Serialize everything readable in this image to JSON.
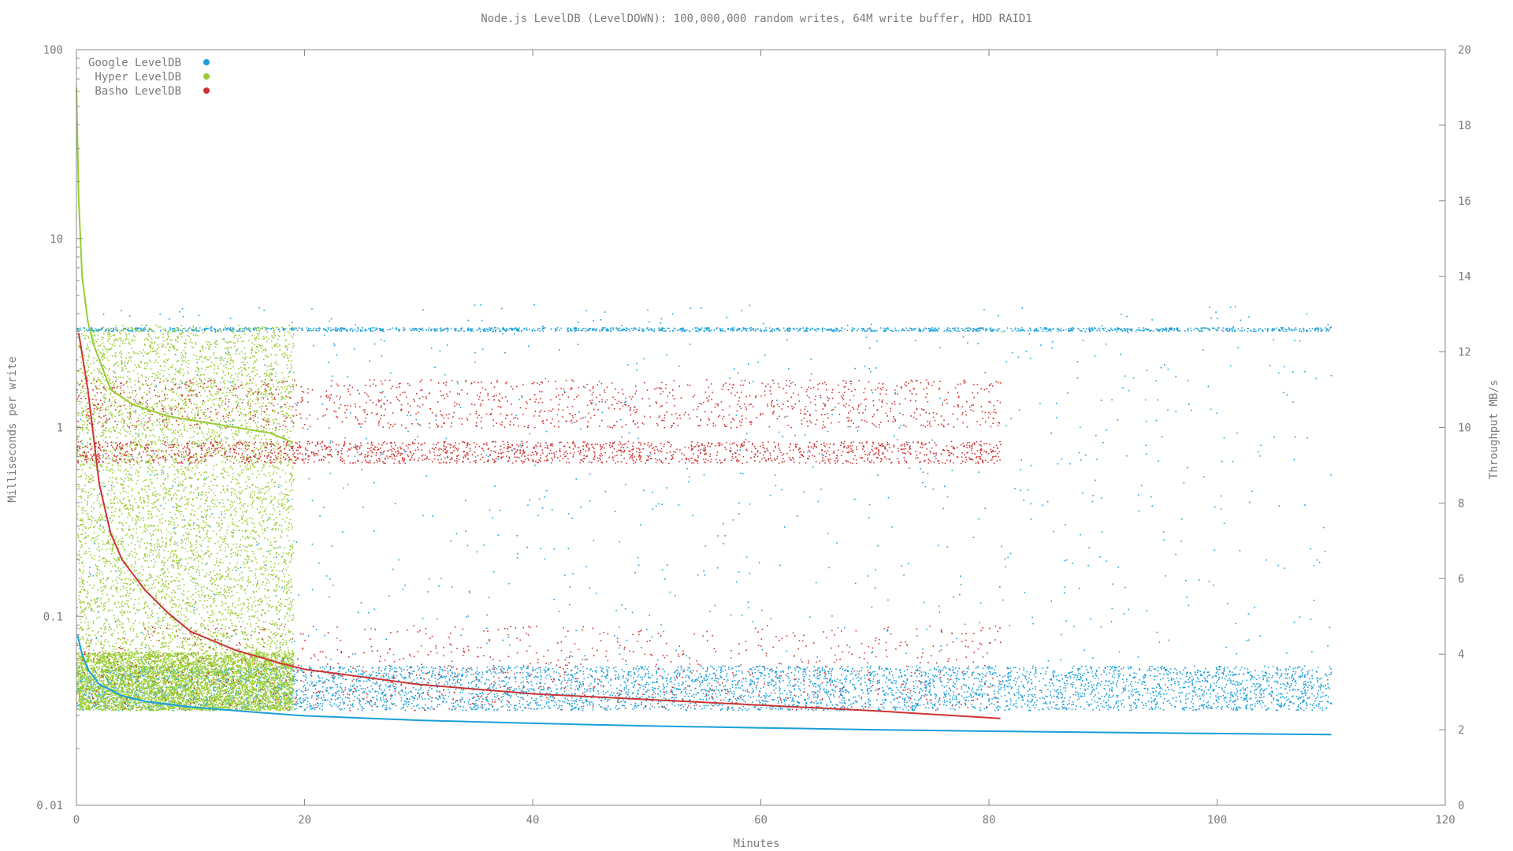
{
  "chart_data": {
    "type": "scatter",
    "title": "Node.js LevelDB (LevelDOWN): 100,000,000 random writes, 64M write buffer, HDD RAID1",
    "xlabel": "Minutes",
    "ylabel": "Milliseconds per write",
    "y2label": "Throughput MB/s",
    "xlim": [
      0,
      120
    ],
    "ylim": [
      0.01,
      100
    ],
    "y_scale": "log",
    "y2lim": [
      0,
      20
    ],
    "grid": false,
    "legend_position": "top-left",
    "x_ticks": [
      "0",
      "20",
      "40",
      "60",
      "80",
      "100",
      "120"
    ],
    "y_ticks": [
      "0.01",
      "0.1",
      "1",
      "10",
      "100"
    ],
    "y2_ticks": [
      "0",
      "2",
      "4",
      "6",
      "8",
      "10",
      "12",
      "14",
      "16",
      "18",
      "20"
    ],
    "series": [
      {
        "name": "Google LevelDB",
        "color": "#1a9fd9",
        "x_end": 110,
        "latency_bands_ms": [
          [
            0.032,
            0.055
          ],
          [
            3.25,
            3.4
          ],
          [
            0.055,
            4.5
          ]
        ],
        "throughput_mb_s": [
          [
            0.1,
            4.5
          ],
          [
            0.5,
            4.0
          ],
          [
            1,
            3.6
          ],
          [
            2,
            3.2
          ],
          [
            4,
            2.9
          ],
          [
            6,
            2.75
          ],
          [
            10,
            2.6
          ],
          [
            15,
            2.48
          ],
          [
            20,
            2.37
          ],
          [
            30,
            2.25
          ],
          [
            40,
            2.17
          ],
          [
            50,
            2.1
          ],
          [
            60,
            2.05
          ],
          [
            70,
            2.0
          ],
          [
            80,
            1.96
          ],
          [
            90,
            1.93
          ],
          [
            100,
            1.9
          ],
          [
            110,
            1.87
          ]
        ]
      },
      {
        "name": "Hyper LevelDB",
        "color": "#99cc33",
        "x_end": 19,
        "latency_bands_ms": [
          [
            0.032,
            0.065
          ],
          [
            0.065,
            3.5
          ]
        ],
        "throughput_mb_s": [
          [
            0,
            19
          ],
          [
            0.2,
            16
          ],
          [
            0.5,
            14
          ],
          [
            1,
            12.8
          ],
          [
            1.5,
            12.2
          ],
          [
            3,
            11.0
          ],
          [
            5,
            10.6
          ],
          [
            8,
            10.3
          ],
          [
            10,
            10.2
          ],
          [
            14,
            10.0
          ],
          [
            17,
            9.85
          ],
          [
            19,
            9.6
          ]
        ]
      },
      {
        "name": "Basho LevelDB",
        "color": "#cc3333",
        "x_end": 81,
        "latency_bands_ms": [
          [
            0.65,
            0.85
          ],
          [
            1.0,
            1.8
          ],
          [
            0.032,
            0.09
          ]
        ],
        "throughput_mb_s": [
          [
            0.2,
            12.5
          ],
          [
            1,
            11
          ],
          [
            2,
            8.5
          ],
          [
            3,
            7.2
          ],
          [
            4,
            6.5
          ],
          [
            6,
            5.7
          ],
          [
            8,
            5.1
          ],
          [
            10,
            4.6
          ],
          [
            14,
            4.1
          ],
          [
            18,
            3.75
          ],
          [
            20,
            3.6
          ],
          [
            30,
            3.2
          ],
          [
            40,
            2.95
          ],
          [
            50,
            2.8
          ],
          [
            60,
            2.65
          ],
          [
            70,
            2.5
          ],
          [
            81,
            2.3
          ]
        ]
      }
    ]
  }
}
